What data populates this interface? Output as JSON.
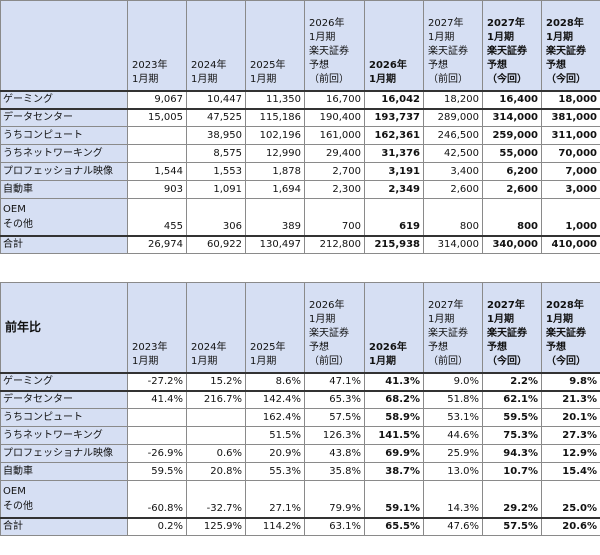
{
  "columns": [
    {
      "lines": [
        "2023年",
        "1月期"
      ],
      "bold": false
    },
    {
      "lines": [
        "2024年",
        "1月期"
      ],
      "bold": false
    },
    {
      "lines": [
        "2025年",
        "1月期"
      ],
      "bold": false
    },
    {
      "lines": [
        "2026年",
        "1月期",
        "楽天証券",
        "予想",
        "（前回）"
      ],
      "bold": false
    },
    {
      "lines": [
        "2026年",
        "1月期"
      ],
      "bold": true
    },
    {
      "lines": [
        "2027年",
        "1月期",
        "楽天証券",
        "予想",
        "（前回）"
      ],
      "bold": false
    },
    {
      "lines": [
        "2027年",
        "1月期",
        "楽天証券",
        "予想",
        "（今回）"
      ],
      "bold": true
    },
    {
      "lines": [
        "2028年",
        "1月期",
        "楽天証券",
        "予想",
        "（今回）"
      ],
      "bold": true
    }
  ],
  "bold_cols": [
    4,
    6,
    7
  ],
  "sales": {
    "corner": "",
    "rows": [
      {
        "label": [
          "ゲーミング"
        ],
        "values": [
          "9,067",
          "10,447",
          "11,350",
          "16,700",
          "16,042",
          "18,200",
          "16,400",
          "18,000"
        ],
        "sep": true
      },
      {
        "label": [
          "データセンター"
        ],
        "values": [
          "15,005",
          "47,525",
          "115,186",
          "190,400",
          "193,737",
          "289,000",
          "314,000",
          "381,000"
        ]
      },
      {
        "label": [
          "うちコンピュート"
        ],
        "values": [
          "",
          "38,950",
          "102,196",
          "161,000",
          "162,361",
          "246,500",
          "259,000",
          "311,000"
        ]
      },
      {
        "label": [
          "うちネットワーキング"
        ],
        "values": [
          "",
          "8,575",
          "12,990",
          "29,400",
          "31,376",
          "42,500",
          "55,000",
          "70,000"
        ]
      },
      {
        "label": [
          "プロフェッショナル映像"
        ],
        "values": [
          "1,544",
          "1,553",
          "1,878",
          "2,700",
          "3,191",
          "3,400",
          "6,200",
          "7,000"
        ]
      },
      {
        "label": [
          "自動車"
        ],
        "values": [
          "903",
          "1,091",
          "1,694",
          "2,300",
          "2,349",
          "2,600",
          "2,600",
          "3,000"
        ]
      },
      {
        "label": [
          "OEM",
          "その他"
        ],
        "values": [
          "455",
          "306",
          "389",
          "700",
          "619",
          "800",
          "800",
          "1,000"
        ],
        "tall": true,
        "sep": true
      },
      {
        "label": [
          "合計"
        ],
        "values": [
          "26,974",
          "60,922",
          "130,497",
          "212,800",
          "215,938",
          "314,000",
          "340,000",
          "410,000"
        ]
      }
    ]
  },
  "growth": {
    "corner": "前年比",
    "rows": [
      {
        "label": [
          "ゲーミング"
        ],
        "values": [
          "-27.2%",
          "15.2%",
          "8.6%",
          "47.1%",
          "41.3%",
          "9.0%",
          "2.2%",
          "9.8%"
        ],
        "sep": true
      },
      {
        "label": [
          "データセンター"
        ],
        "values": [
          "41.4%",
          "216.7%",
          "142.4%",
          "65.3%",
          "68.2%",
          "51.8%",
          "62.1%",
          "21.3%"
        ]
      },
      {
        "label": [
          "うちコンピュート"
        ],
        "values": [
          "",
          "",
          "162.4%",
          "57.5%",
          "58.9%",
          "53.1%",
          "59.5%",
          "20.1%"
        ]
      },
      {
        "label": [
          "うちネットワーキング"
        ],
        "values": [
          "",
          "",
          "51.5%",
          "126.3%",
          "141.5%",
          "44.6%",
          "75.3%",
          "27.3%"
        ]
      },
      {
        "label": [
          "プロフェッショナル映像"
        ],
        "values": [
          "-26.9%",
          "0.6%",
          "20.9%",
          "43.8%",
          "69.9%",
          "25.9%",
          "94.3%",
          "12.9%"
        ]
      },
      {
        "label": [
          "自動車"
        ],
        "values": [
          "59.5%",
          "20.8%",
          "55.3%",
          "35.8%",
          "38.7%",
          "13.0%",
          "10.7%",
          "15.4%"
        ]
      },
      {
        "label": [
          "OEM",
          "その他"
        ],
        "values": [
          "-60.8%",
          "-32.7%",
          "27.1%",
          "79.9%",
          "59.1%",
          "14.3%",
          "29.2%",
          "25.0%"
        ],
        "tall": true,
        "sep": true
      },
      {
        "label": [
          "合計"
        ],
        "values": [
          "0.2%",
          "125.9%",
          "114.2%",
          "63.1%",
          "65.5%",
          "47.6%",
          "57.5%",
          "20.6%"
        ]
      }
    ]
  }
}
